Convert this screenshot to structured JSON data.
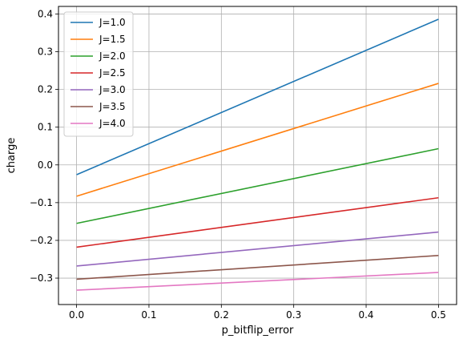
{
  "chart_data": {
    "type": "line",
    "title": "",
    "xlabel": "p_bitflip_error",
    "ylabel": "charge",
    "xlim": [
      -0.025,
      0.525
    ],
    "ylim": [
      -0.37,
      0.42
    ],
    "x_ticks": [
      0.0,
      0.1,
      0.2,
      0.3,
      0.4,
      0.5
    ],
    "x_tick_labels": [
      "0.0",
      "0.1",
      "0.2",
      "0.3",
      "0.4",
      "0.5"
    ],
    "y_ticks": [
      -0.3,
      -0.2,
      -0.1,
      0.0,
      0.1,
      0.2,
      0.3,
      0.4
    ],
    "y_tick_labels": [
      "−0.3",
      "−0.2",
      "−0.1",
      "0.0",
      "0.1",
      "0.2",
      "0.3",
      "0.4"
    ],
    "grid": true,
    "legend_position": "top-left",
    "x": [
      0.0,
      0.5
    ],
    "series": [
      {
        "name": "J=1.0",
        "color": "#1f77b4",
        "values": [
          -0.026,
          0.386
        ]
      },
      {
        "name": "J=1.5",
        "color": "#ff7f0e",
        "values": [
          -0.083,
          0.216
        ]
      },
      {
        "name": "J=2.0",
        "color": "#2ca02c",
        "values": [
          -0.155,
          0.043
        ]
      },
      {
        "name": "J=2.5",
        "color": "#d62728",
        "values": [
          -0.218,
          -0.087
        ]
      },
      {
        "name": "J=3.0",
        "color": "#9467bd",
        "values": [
          -0.268,
          -0.178
        ]
      },
      {
        "name": "J=3.5",
        "color": "#8c564b",
        "values": [
          -0.303,
          -0.24
        ]
      },
      {
        "name": "J=4.0",
        "color": "#e377c2",
        "values": [
          -0.332,
          -0.285
        ]
      }
    ]
  }
}
